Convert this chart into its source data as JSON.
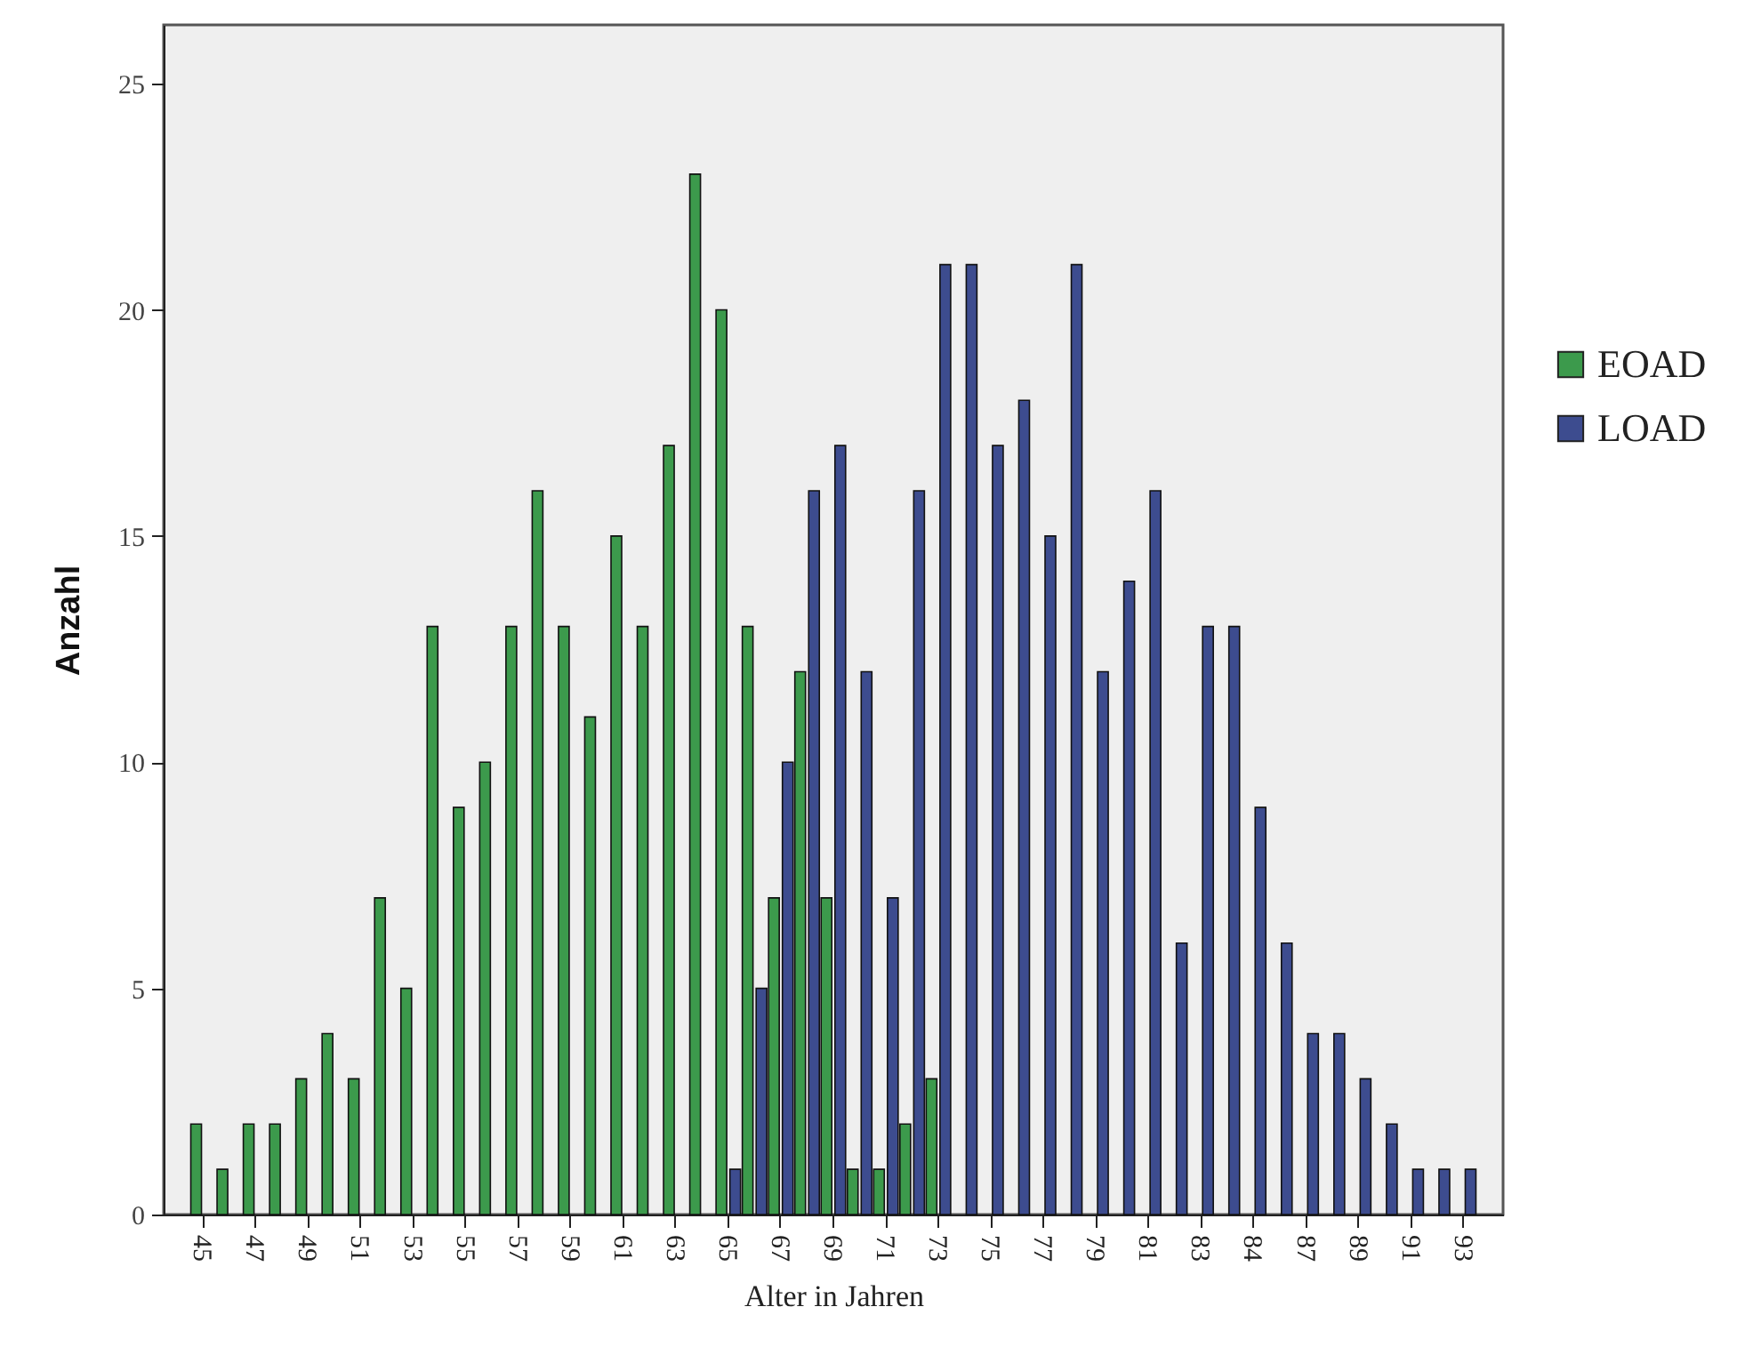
{
  "chart_data": {
    "type": "bar",
    "xlabel": "Alter in Jahren",
    "ylabel": "Anzahl",
    "categories": [
      "45",
      null,
      "47",
      null,
      "49",
      null,
      "51",
      null,
      "53",
      null,
      "55",
      null,
      "57",
      null,
      "59",
      null,
      "61",
      null,
      "63",
      null,
      "65",
      null,
      "67",
      null,
      "69",
      null,
      "71",
      null,
      "73",
      null,
      "75",
      null,
      "77",
      null,
      "79",
      null,
      "81",
      null,
      "83",
      null,
      "84",
      null,
      "87",
      null,
      "89",
      null,
      "91",
      null,
      "93"
    ],
    "series": [
      {
        "name": "EOAD",
        "color": "#3c9a4c",
        "values": [
          2,
          1,
          2,
          2,
          3,
          4,
          3,
          7,
          5,
          13,
          9,
          10,
          13,
          16,
          13,
          11,
          15,
          13,
          17,
          23,
          20,
          13,
          7,
          12,
          7,
          1,
          1,
          2,
          3,
          null,
          null,
          null,
          null,
          null,
          null,
          null,
          null,
          null,
          null,
          null,
          null,
          null,
          null,
          null,
          null,
          null,
          null,
          null,
          null
        ]
      },
      {
        "name": "LOAD",
        "color": "#3d4c8f",
        "values": [
          null,
          null,
          null,
          null,
          null,
          null,
          null,
          null,
          null,
          null,
          null,
          null,
          null,
          null,
          null,
          null,
          null,
          null,
          null,
          null,
          1,
          5,
          10,
          16,
          17,
          12,
          7,
          16,
          21,
          21,
          17,
          18,
          15,
          21,
          12,
          14,
          16,
          6,
          13,
          13,
          9,
          6,
          4,
          4,
          3,
          2,
          1,
          1,
          1
        ]
      }
    ],
    "ylim": [
      0,
      26.3
    ],
    "yticks": [
      0,
      5,
      10,
      15,
      20,
      25
    ],
    "legend": "right"
  }
}
